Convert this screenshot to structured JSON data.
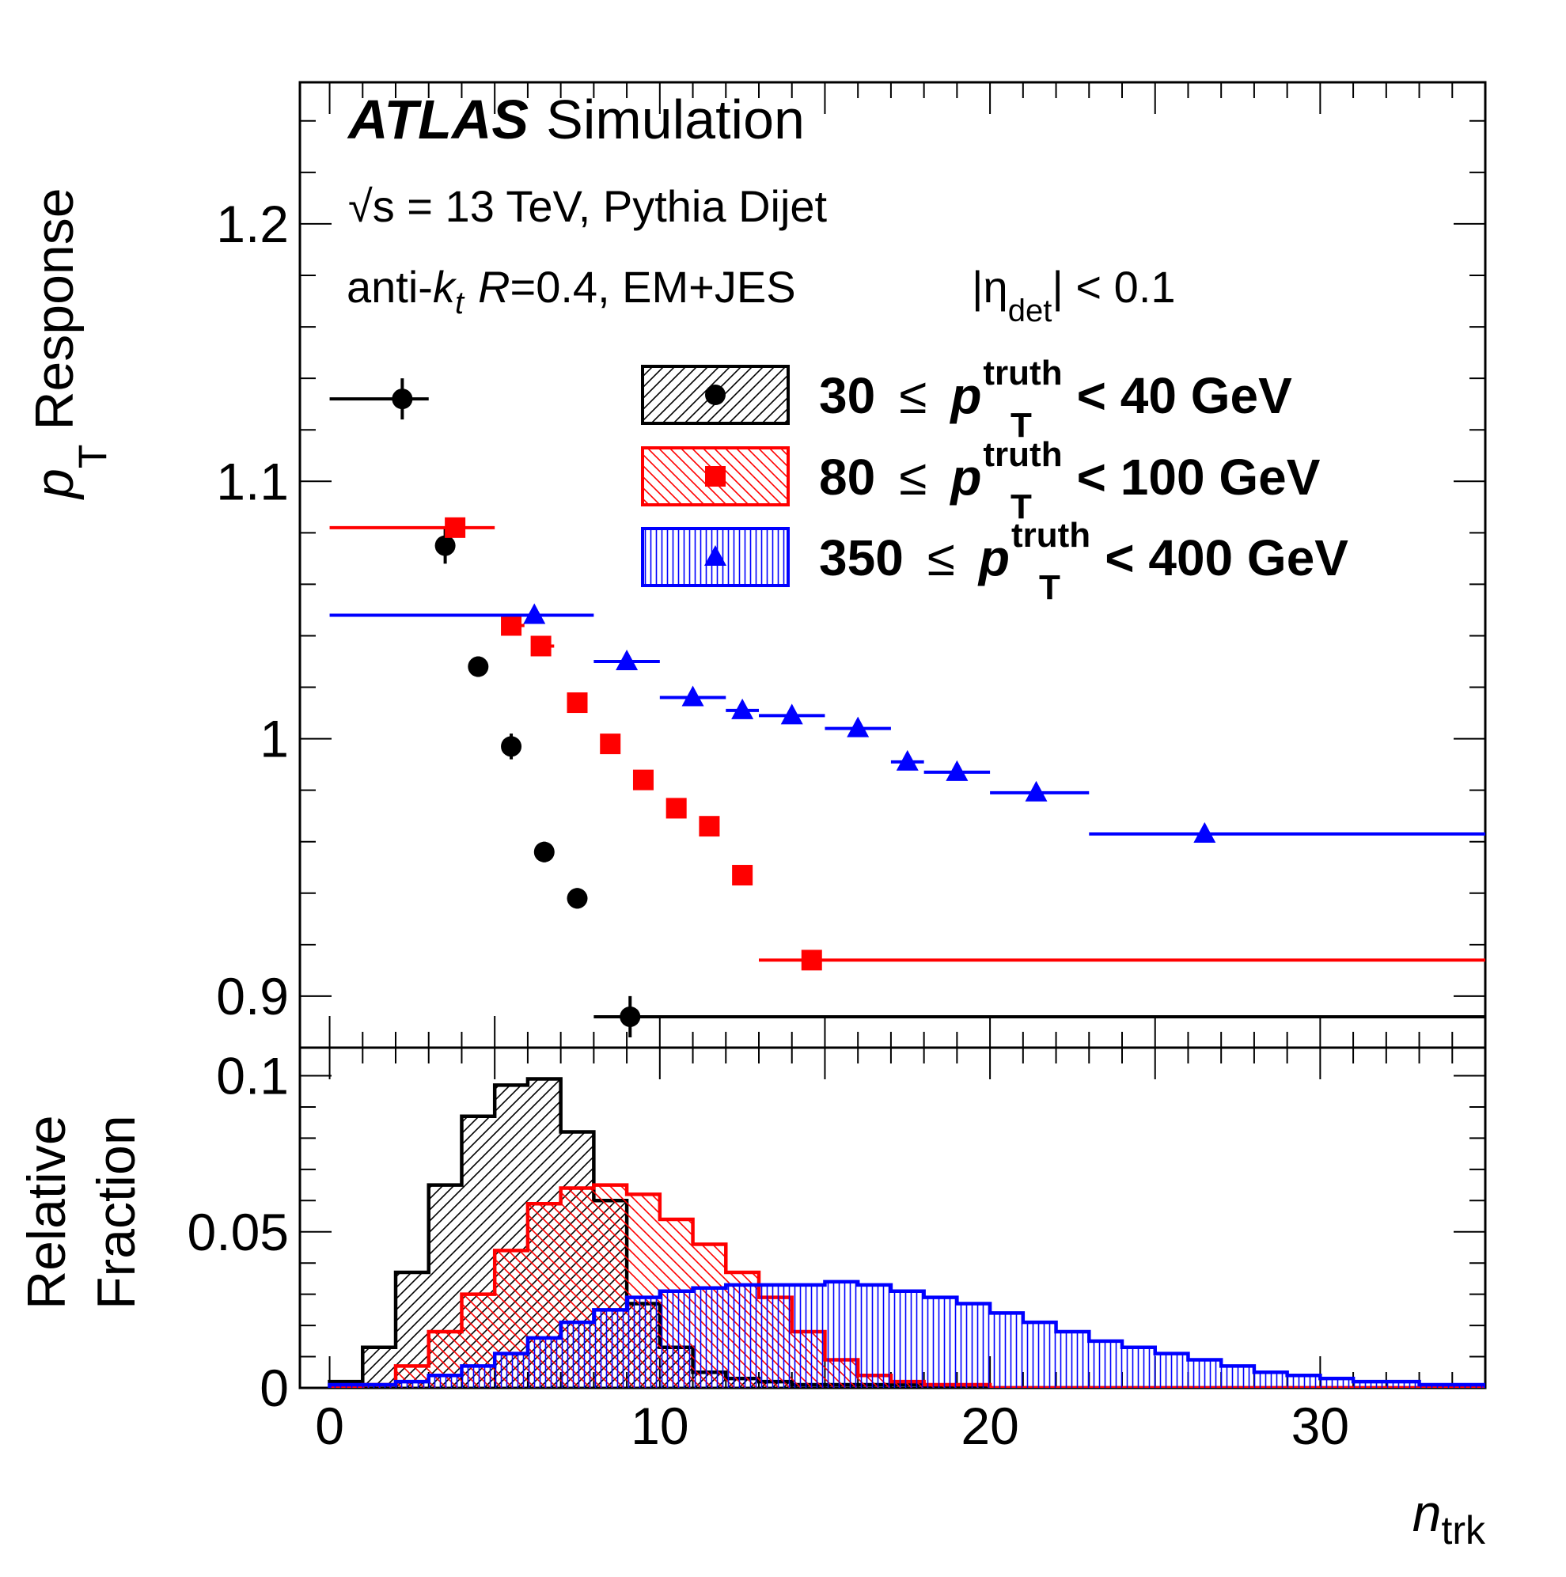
{
  "chart_data": {
    "type": "scatter",
    "header": {
      "atlas": "ATLAS",
      "simulation": "Simulation",
      "sqrt_s": "√s = 13 TeV, Pythia Dijet",
      "jet_algo_prefix": "anti-",
      "jet_algo_k": "k",
      "jet_algo_t": "t",
      "jet_R": "R",
      "jet_algo_suffix": "=0.4, EM+JES",
      "eta_prefix": "|η",
      "eta_sub": "det",
      "eta_suffix": "| < 0.1"
    },
    "top_panel": {
      "ylabel_p": "p",
      "ylabel_sub": "T",
      "ylabel_rest": "Response",
      "ylim": [
        0.88,
        1.255
      ],
      "yticks": [
        "0.9",
        "1",
        "1.1",
        "1.2"
      ],
      "ytick_values": [
        0.9,
        1.0,
        1.1,
        1.2
      ],
      "series": [
        {
          "name_lo": "30",
          "name_hi": "< 40 GeV",
          "color": "#000000",
          "marker": "circle",
          "points": [
            {
              "x": 2.2,
              "xerr": [
                0,
                3
              ],
              "y": 1.132,
              "yerr": 0.008
            },
            {
              "x": 3.5,
              "xerr": [
                3.3,
                3.8
              ],
              "y": 1.075,
              "yerr": 0.007
            },
            {
              "x": 4.5,
              "xerr": [
                4.2,
                4.8
              ],
              "y": 1.028,
              "yerr": 0.004
            },
            {
              "x": 5.5,
              "xerr": [
                5.2,
                5.8
              ],
              "y": 0.997,
              "yerr": 0.005
            },
            {
              "x": 6.5,
              "xerr": [
                6.2,
                6.8
              ],
              "y": 0.956,
              "yerr": 0.004
            },
            {
              "x": 7.5,
              "xerr": [
                7.2,
                7.8
              ],
              "y": 0.938,
              "yerr": 0.004
            },
            {
              "x": 9.1,
              "xerr": [
                8.0,
                35.0
              ],
              "y": 0.892,
              "yerr": 0.008
            }
          ]
        },
        {
          "name_lo": "80",
          "name_hi": "< 100 GeV",
          "color": "#ff0000",
          "marker": "square",
          "points": [
            {
              "x": 3.8,
              "xerr": [
                0,
                5.0
              ],
              "y": 1.082,
              "yerr": 0.003
            },
            {
              "x": 5.5,
              "xerr": [
                5.2,
                5.9
              ],
              "y": 1.044,
              "yerr": 0.003
            },
            {
              "x": 6.4,
              "xerr": [
                6.1,
                6.8
              ],
              "y": 1.036,
              "yerr": 0.003
            },
            {
              "x": 7.5,
              "xerr": [
                7.2,
                7.8
              ],
              "y": 1.014,
              "yerr": 0.003
            },
            {
              "x": 8.5,
              "xerr": [
                8.2,
                8.8
              ],
              "y": 0.998,
              "yerr": 0.003
            },
            {
              "x": 9.5,
              "xerr": [
                9.2,
                9.8
              ],
              "y": 0.984,
              "yerr": 0.003
            },
            {
              "x": 10.5,
              "xerr": [
                10.2,
                10.8
              ],
              "y": 0.973,
              "yerr": 0.003
            },
            {
              "x": 11.5,
              "xerr": [
                11.2,
                11.8
              ],
              "y": 0.966,
              "yerr": 0.003
            },
            {
              "x": 12.5,
              "xerr": [
                12.2,
                12.8
              ],
              "y": 0.947,
              "yerr": 0.003
            },
            {
              "x": 14.6,
              "xerr": [
                13.0,
                35.0
              ],
              "y": 0.914,
              "yerr": 0.002
            }
          ]
        },
        {
          "name_lo": "350",
          "name_hi": "< 400 GeV",
          "color": "#0000ff",
          "marker": "triangle",
          "points": [
            {
              "x": 6.2,
              "xerr": [
                0,
                8.0
              ],
              "y": 1.048,
              "yerr": 0.002
            },
            {
              "x": 9.0,
              "xerr": [
                8.0,
                10.0
              ],
              "y": 1.03,
              "yerr": 0.002
            },
            {
              "x": 11.0,
              "xerr": [
                10.0,
                12.0
              ],
              "y": 1.016,
              "yerr": 0.002
            },
            {
              "x": 12.5,
              "xerr": [
                12.0,
                13.0
              ],
              "y": 1.011,
              "yerr": 0.002
            },
            {
              "x": 14.0,
              "xerr": [
                13.0,
                15.0
              ],
              "y": 1.009,
              "yerr": 0.002
            },
            {
              "x": 16.0,
              "xerr": [
                15.0,
                17.0
              ],
              "y": 1.004,
              "yerr": 0.002
            },
            {
              "x": 17.5,
              "xerr": [
                17.0,
                18.0
              ],
              "y": 0.991,
              "yerr": 0.002
            },
            {
              "x": 19.0,
              "xerr": [
                18.0,
                20.0
              ],
              "y": 0.987,
              "yerr": 0.002
            },
            {
              "x": 21.4,
              "xerr": [
                20.0,
                23.0
              ],
              "y": 0.979,
              "yerr": 0.002
            },
            {
              "x": 26.5,
              "xerr": [
                23.0,
                35.0
              ],
              "y": 0.963,
              "yerr": 0.002
            }
          ]
        }
      ],
      "legend_pt": "p",
      "legend_pt_sup": "truth",
      "legend_pt_sub": "T",
      "legend_leq": "≤"
    },
    "bottom_panel": {
      "ylabel_line1": "Relative",
      "ylabel_line2": "Fraction",
      "ylim": [
        0,
        0.109
      ],
      "yticks": [
        "0",
        "0.05",
        "0.1"
      ],
      "ytick_values": [
        0,
        0.05,
        0.1
      ],
      "bin_edges": [
        0,
        1,
        2,
        3,
        4,
        5,
        6,
        7,
        8,
        9,
        10,
        11,
        12,
        13,
        14,
        15,
        16,
        17,
        18,
        19,
        20,
        21,
        22,
        23,
        24,
        25,
        26,
        27,
        28,
        29,
        30,
        31,
        32,
        33,
        34,
        35
      ],
      "histograms": [
        {
          "color": "#000000",
          "hatch": "diag-right",
          "values": [
            0.002,
            0.013,
            0.037,
            0.065,
            0.087,
            0.097,
            0.099,
            0.082,
            0.06,
            0.027,
            0.013,
            0.005,
            0.003,
            0.002,
            0.001,
            0.001,
            0.001,
            0.001,
            0,
            0,
            0,
            0,
            0,
            0,
            0,
            0,
            0,
            0,
            0,
            0,
            0,
            0,
            0,
            0,
            0
          ]
        },
        {
          "color": "#ff0000",
          "hatch": "diag-left",
          "values": [
            0,
            0.001,
            0.007,
            0.018,
            0.03,
            0.044,
            0.059,
            0.064,
            0.065,
            0.062,
            0.054,
            0.046,
            0.037,
            0.029,
            0.018,
            0.009,
            0.004,
            0.002,
            0.001,
            0.001,
            0,
            0,
            0,
            0,
            0,
            0,
            0,
            0,
            0,
            0,
            0,
            0,
            0,
            0,
            0
          ]
        },
        {
          "color": "#0000ff",
          "hatch": "vertical",
          "values": [
            0.001,
            0.001,
            0.002,
            0.004,
            0.007,
            0.011,
            0.016,
            0.021,
            0.025,
            0.029,
            0.031,
            0.032,
            0.033,
            0.033,
            0.033,
            0.034,
            0.033,
            0.031,
            0.029,
            0.027,
            0.024,
            0.021,
            0.018,
            0.015,
            0.013,
            0.011,
            0.009,
            0.007,
            0.005,
            0.004,
            0.003,
            0.002,
            0.002,
            0.001,
            0.001
          ]
        }
      ]
    },
    "x_axis": {
      "label_n": "n",
      "label_sub": "trk",
      "xlim": [
        -0.9,
        35
      ],
      "xticks": [
        "0",
        "10",
        "20",
        "30"
      ],
      "xtick_values": [
        0,
        10,
        20,
        30
      ]
    }
  }
}
